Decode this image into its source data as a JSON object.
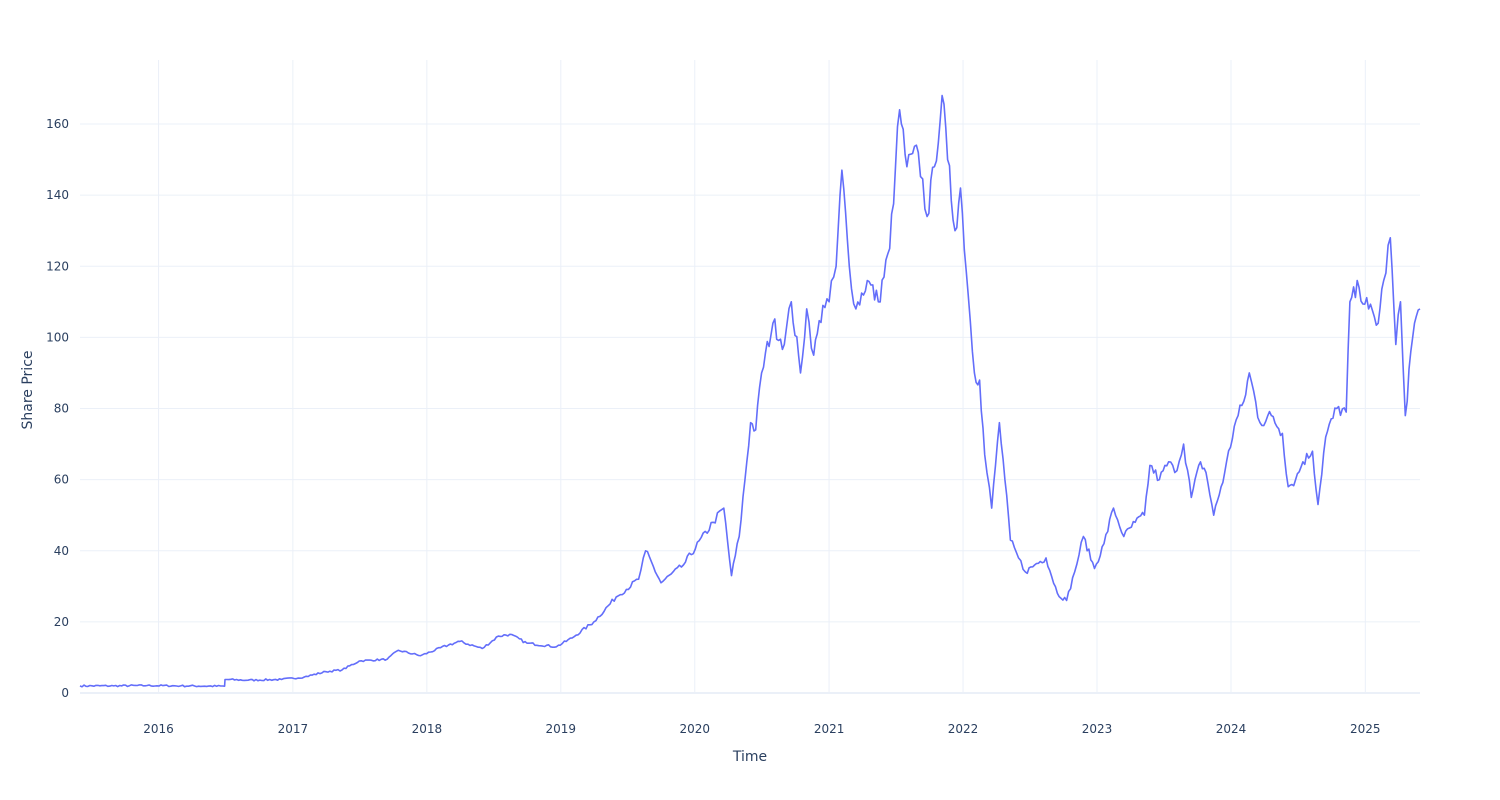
{
  "chart_data": {
    "type": "line",
    "title": "",
    "xlabel": "Time",
    "ylabel": "Share Price",
    "xlim": [
      "2015-06-01",
      "2025-05-30"
    ],
    "ylim": [
      0,
      178
    ],
    "x_ticks": [
      "2016",
      "2017",
      "2018",
      "2019",
      "2020",
      "2021",
      "2022",
      "2023",
      "2024",
      "2025"
    ],
    "y_ticks": [
      0,
      20,
      40,
      60,
      80,
      100,
      120,
      140,
      160
    ],
    "grid": true,
    "legend": "none",
    "series": [
      {
        "color": "#636efa",
        "x": [
          "2015-06-01",
          "2015-09-01",
          "2015-12-01",
          "2016-03-01",
          "2016-06-29",
          "2016-06-30",
          "2016-09-01",
          "2016-12-01",
          "2017-02-01",
          "2017-04-01",
          "2017-05-15",
          "2017-07-01",
          "2017-09-15",
          "2017-10-15",
          "2017-12-15",
          "2018-03-01",
          "2018-04-01",
          "2018-06-01",
          "2018-07-15",
          "2018-08-15",
          "2018-10-01",
          "2018-12-20",
          "2019-02-01",
          "2019-04-01",
          "2019-06-01",
          "2019-08-01",
          "2019-08-20",
          "2019-10-01",
          "2019-12-01",
          "2020-02-20",
          "2020-03-20",
          "2020-04-10",
          "2020-05-01",
          "2020-06-01",
          "2020-06-15",
          "2020-07-01",
          "2020-08-01",
          "2020-09-01",
          "2020-09-20",
          "2020-10-15",
          "2020-11-01",
          "2020-11-20",
          "2020-12-15",
          "2021-01-01",
          "2021-01-20",
          "2021-02-05",
          "2021-02-25",
          "2021-03-15",
          "2021-04-15",
          "2021-05-15",
          "2021-06-15",
          "2021-07-01",
          "2021-07-12",
          "2021-08-01",
          "2021-09-01",
          "2021-09-25",
          "2021-10-15",
          "2021-11-05",
          "2021-11-20",
          "2021-12-10",
          "2021-12-25",
          "2022-01-15",
          "2022-02-01",
          "2022-02-15",
          "2022-03-01",
          "2022-03-20",
          "2022-04-10",
          "2022-04-25",
          "2022-05-10",
          "2022-06-01",
          "2022-06-20",
          "2022-07-15",
          "2022-08-15",
          "2022-09-15",
          "2022-10-10",
          "2022-11-01",
          "2022-11-25",
          "2022-12-25",
          "2023-01-20",
          "2023-02-15",
          "2023-03-15",
          "2023-04-15",
          "2023-05-10",
          "2023-05-25",
          "2023-06-20",
          "2023-07-15",
          "2023-08-01",
          "2023-08-25",
          "2023-09-15",
          "2023-10-10",
          "2023-10-25",
          "2023-11-15",
          "2023-12-15",
          "2024-01-10",
          "2024-02-05",
          "2024-02-20",
          "2024-03-20",
          "2024-04-20",
          "2024-05-20",
          "2024-06-05",
          "2024-06-25",
          "2024-07-15",
          "2024-08-10",
          "2024-08-25",
          "2024-09-15",
          "2024-10-15",
          "2024-11-10",
          "2024-11-20",
          "2024-12-15",
          "2025-01-10",
          "2025-02-05",
          "2025-02-20",
          "2025-03-10",
          "2025-03-25",
          "2025-04-07",
          "2025-04-20",
          "2025-05-05",
          "2025-05-15",
          "2025-05-30"
        ],
        "y": [
          2.0,
          2.0,
          2.1,
          2.0,
          1.9,
          3.8,
          3.6,
          3.8,
          4.5,
          6.0,
          6.5,
          9.0,
          9.5,
          12.0,
          10.5,
          13.5,
          14.5,
          12.5,
          16.0,
          16.5,
          14.0,
          13.0,
          15.5,
          20.0,
          27.0,
          32.0,
          40.0,
          31.0,
          36.0,
          48.0,
          52.0,
          33.0,
          44.0,
          76.0,
          74.0,
          90.0,
          104.0,
          98.0,
          110.0,
          90.0,
          108.0,
          95.0,
          109.0,
          110.0,
          120.0,
          147.0,
          120.0,
          108.0,
          116.0,
          110.0,
          125.0,
          148.0,
          164.0,
          148.0,
          152.0,
          134.0,
          148.0,
          168.0,
          150.0,
          130.0,
          142.0,
          112.0,
          90.0,
          88.0,
          67.0,
          52.0,
          76.0,
          60.0,
          43.0,
          38.0,
          34.0,
          36.0,
          38.0,
          28.0,
          26.0,
          34.0,
          44.0,
          35.0,
          42.0,
          52.0,
          44.0,
          48.0,
          50.0,
          64.0,
          60.0,
          65.0,
          62.0,
          70.0,
          55.0,
          65.0,
          62.0,
          50.0,
          62.0,
          75.0,
          82.0,
          90.0,
          76.0,
          78.0,
          73.0,
          58.0,
          60.0,
          65.0,
          68.0,
          53.0,
          72.0,
          80.0,
          79.0,
          110.0,
          114.0,
          108.0,
          104.0,
          116.0,
          128.0,
          98.0,
          110.0,
          78.0,
          96.0,
          104.0,
          108.0
        ]
      }
    ]
  }
}
